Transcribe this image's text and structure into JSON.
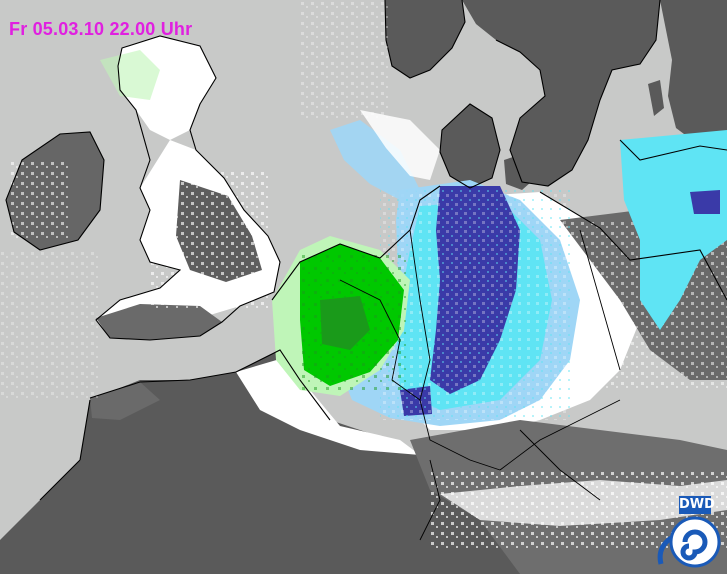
{
  "map": {
    "timestamp": "Fr 05.03.10 22.00 Uhr",
    "provider_logo_text": "DWD",
    "colors": {
      "timestamp": "#e020e0",
      "sea_cloud": "#c8c9c8",
      "land_dark": "#5a5a5a",
      "land_mid": "#777777",
      "snow_white": "#ffffff",
      "precip_light_green": "#bff5b8",
      "precip_green": "#00c800",
      "precip_dark_green": "#1a9a1a",
      "precip_light_blue": "#9fd6f6",
      "precip_cyan": "#5fe4f4",
      "precip_dark_blue": "#3a3aa8",
      "coastline": "#000000",
      "logo_blue": "#1a5ab8"
    },
    "icons": [
      "dwd-logo-icon"
    ]
  }
}
